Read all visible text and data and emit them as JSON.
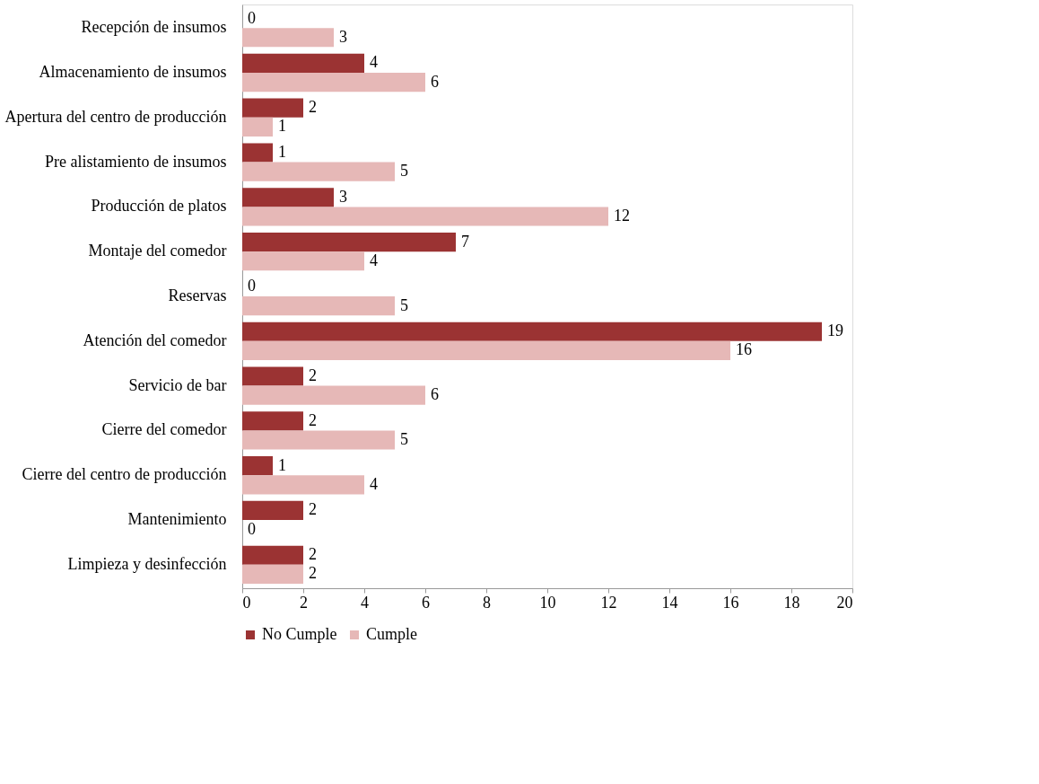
{
  "chart_data": {
    "type": "bar",
    "orientation": "horizontal",
    "categories": [
      "Recepción de insumos",
      "Almacenamiento de insumos",
      "Apertura del centro de producción",
      "Pre alistamiento de insumos",
      "Producción de platos",
      "Montaje del comedor",
      "Reservas",
      "Atención del comedor",
      "Servicio de bar",
      "Cierre del comedor",
      "Cierre del centro de producción",
      "Mantenimiento",
      "Limpieza y desinfección"
    ],
    "series": [
      {
        "name": "No Cumple",
        "color": "#9b3333",
        "values": [
          0,
          4,
          2,
          1,
          3,
          7,
          0,
          19,
          2,
          2,
          1,
          2,
          2
        ]
      },
      {
        "name": "Cumple",
        "color": "#e6b8b7",
        "values": [
          3,
          6,
          1,
          5,
          12,
          4,
          5,
          16,
          6,
          5,
          4,
          0,
          2
        ]
      }
    ],
    "xlim": [
      0,
      20
    ],
    "xticks": [
      0,
      2,
      4,
      6,
      8,
      10,
      12,
      14,
      16,
      18,
      20
    ],
    "data_labels": true,
    "grid": false,
    "legend": "bottom"
  }
}
